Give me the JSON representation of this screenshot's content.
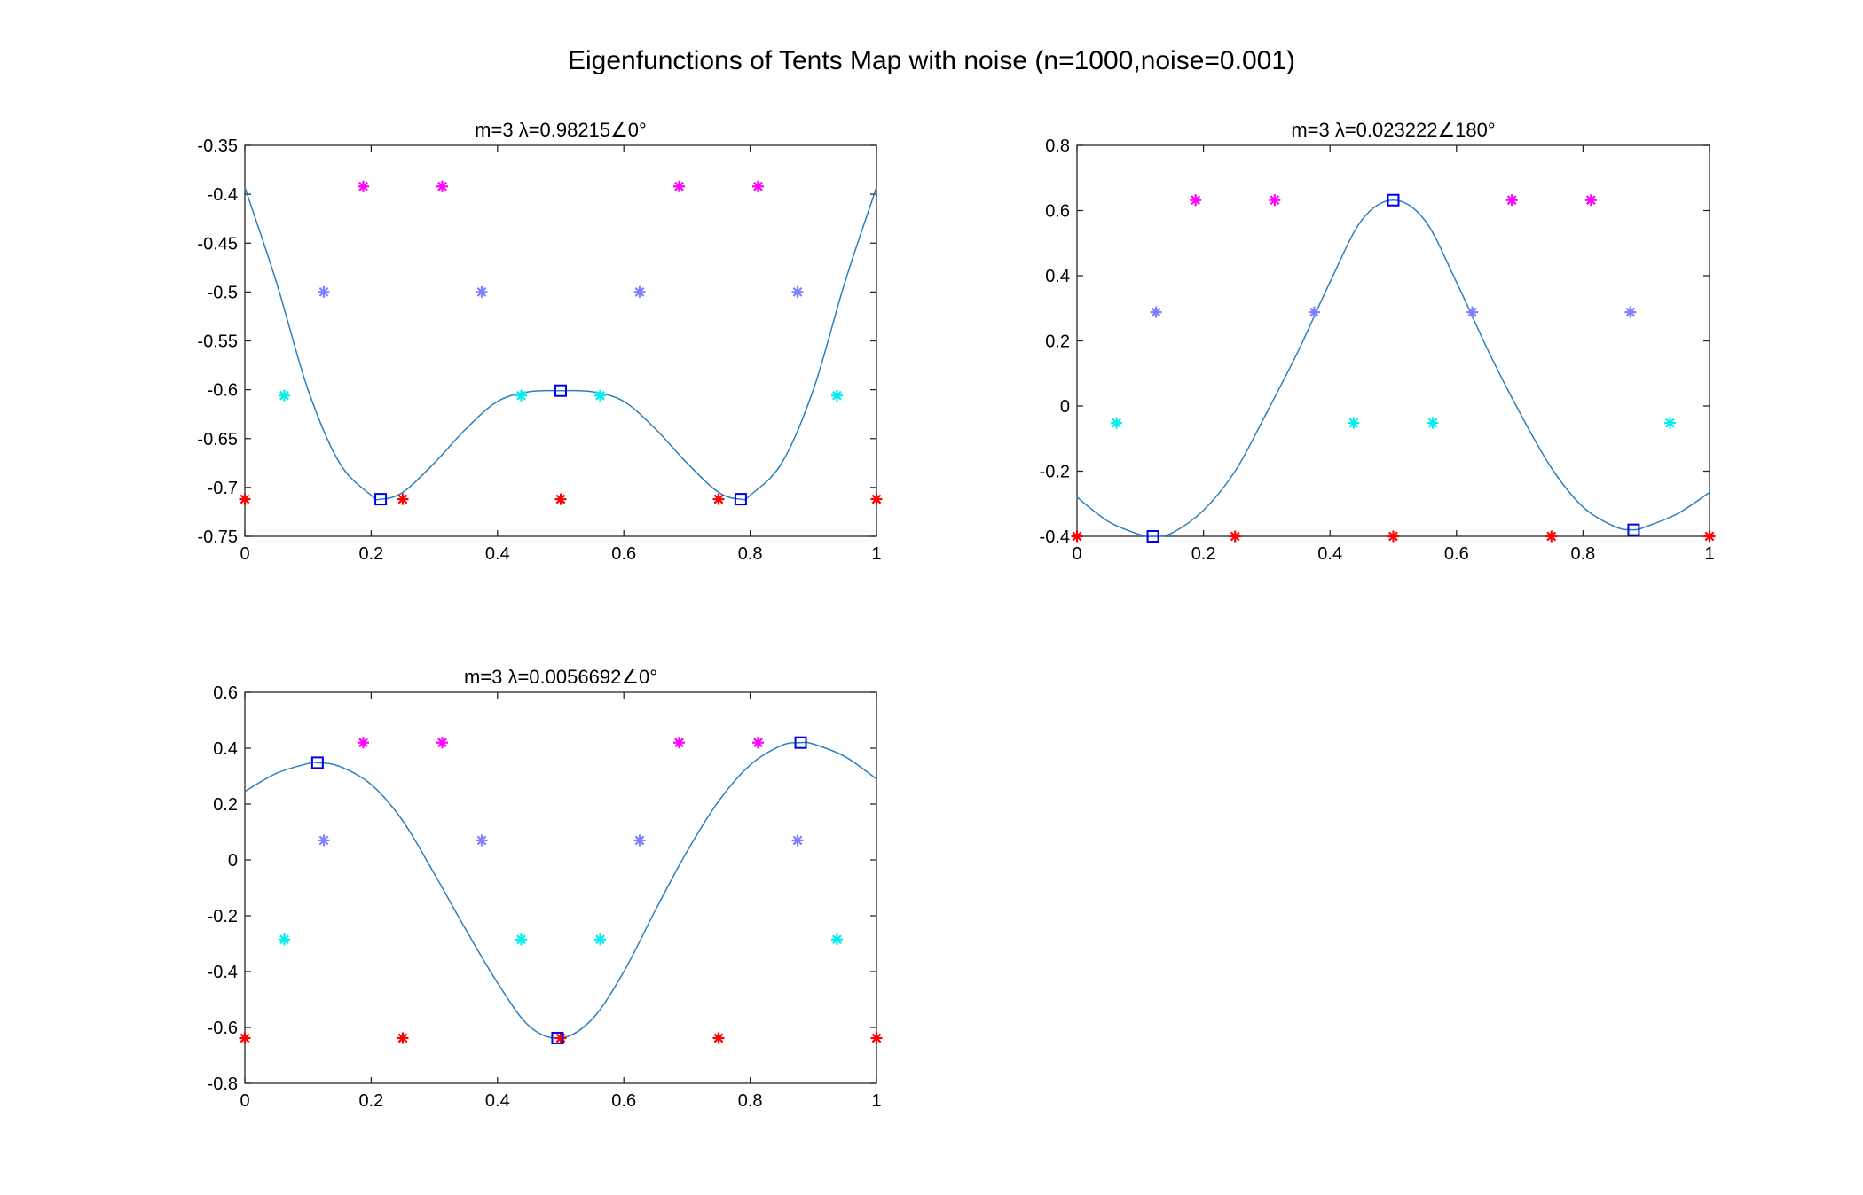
{
  "figure_title": "Eigenfunctions of Tents Map with noise (n=1000,noise=0.001)",
  "colors": {
    "curve": "#2d7fbd",
    "square": "#0000ee",
    "red": "#ff0000",
    "cyan": "#00eeee",
    "lightblue": "#7f7fff",
    "magenta": "#ff00ff"
  },
  "chart_data": [
    {
      "type": "line",
      "title": "m=3 λ=0.98215∠0°",
      "xlim": [
        0,
        1
      ],
      "ylim": [
        -0.75,
        -0.35
      ],
      "xticks": [
        "0",
        "0.2",
        "0.4",
        "0.6",
        "0.8",
        "1"
      ],
      "yticks": [
        "-0.35",
        "-0.4",
        "-0.45",
        "-0.5",
        "-0.55",
        "-0.6",
        "-0.65",
        "-0.7",
        "-0.75"
      ],
      "curve": {
        "x": [
          0,
          0.05,
          0.1,
          0.15,
          0.2,
          0.215,
          0.25,
          0.3,
          0.35,
          0.4,
          0.45,
          0.5,
          0.55,
          0.6,
          0.65,
          0.7,
          0.75,
          0.785,
          0.8,
          0.85,
          0.9,
          0.95,
          1
        ],
        "y": [
          -0.393,
          -0.49,
          -0.6,
          -0.675,
          -0.708,
          -0.712,
          -0.705,
          -0.675,
          -0.64,
          -0.612,
          -0.602,
          -0.601,
          -0.602,
          -0.612,
          -0.64,
          -0.675,
          -0.705,
          -0.712,
          -0.708,
          -0.675,
          -0.6,
          -0.49,
          -0.393
        ]
      },
      "squares": {
        "x": [
          0.215,
          0.5,
          0.785
        ],
        "y": [
          -0.712,
          -0.601,
          -0.712
        ]
      },
      "stars": [
        {
          "color": "red",
          "x": [
            0,
            0.25,
            0.5,
            0.75,
            1
          ],
          "y": [
            -0.712,
            -0.712,
            -0.712,
            -0.712,
            -0.712
          ]
        },
        {
          "color": "cyan",
          "x": [
            0.0625,
            0.4375,
            0.5625,
            0.9375
          ],
          "y": [
            -0.606,
            -0.606,
            -0.606,
            -0.606
          ]
        },
        {
          "color": "lightblue",
          "x": [
            0.125,
            0.375,
            0.625,
            0.875
          ],
          "y": [
            -0.5,
            -0.5,
            -0.5,
            -0.5
          ]
        },
        {
          "color": "magenta",
          "x": [
            0.1875,
            0.3125,
            0.6875,
            0.8125
          ],
          "y": [
            -0.392,
            -0.392,
            -0.392,
            -0.392
          ]
        }
      ]
    },
    {
      "type": "line",
      "title": "m=3 λ=0.023222∠180°",
      "xlim": [
        0,
        1
      ],
      "ylim": [
        -0.4,
        0.8
      ],
      "xticks": [
        "0",
        "0.2",
        "0.4",
        "0.6",
        "0.8",
        "1"
      ],
      "yticks": [
        "0.8",
        "0.6",
        "0.4",
        "0.2",
        "0",
        "-0.2",
        "-0.4"
      ],
      "curve": {
        "x": [
          0,
          0.05,
          0.1,
          0.12,
          0.15,
          0.2,
          0.25,
          0.3,
          0.35,
          0.4,
          0.45,
          0.5,
          0.55,
          0.6,
          0.65,
          0.7,
          0.75,
          0.8,
          0.85,
          0.88,
          0.9,
          0.95,
          1
        ],
        "y": [
          -0.28,
          -0.355,
          -0.395,
          -0.4,
          -0.39,
          -0.32,
          -0.2,
          -0.02,
          0.17,
          0.38,
          0.57,
          0.632,
          0.57,
          0.38,
          0.17,
          -0.02,
          -0.19,
          -0.31,
          -0.37,
          -0.38,
          -0.37,
          -0.33,
          -0.265
        ]
      },
      "squares": {
        "x": [
          0.12,
          0.5,
          0.88
        ],
        "y": [
          -0.4,
          0.632,
          -0.38
        ]
      },
      "stars": [
        {
          "color": "red",
          "x": [
            0,
            0.25,
            0.5,
            0.75,
            1
          ],
          "y": [
            -0.4,
            -0.4,
            -0.4,
            -0.4,
            -0.4
          ]
        },
        {
          "color": "cyan",
          "x": [
            0.0625,
            0.4375,
            0.5625,
            0.9375
          ],
          "y": [
            -0.052,
            -0.052,
            -0.052,
            -0.052
          ]
        },
        {
          "color": "lightblue",
          "x": [
            0.125,
            0.375,
            0.625,
            0.875
          ],
          "y": [
            0.288,
            0.288,
            0.288,
            0.288
          ]
        },
        {
          "color": "magenta",
          "x": [
            0.1875,
            0.3125,
            0.6875,
            0.8125
          ],
          "y": [
            0.632,
            0.632,
            0.632,
            0.632
          ]
        }
      ]
    },
    {
      "type": "line",
      "title": "m=3 λ=0.0056692∠0°",
      "xlim": [
        0,
        1
      ],
      "ylim": [
        -0.8,
        0.6
      ],
      "xticks": [
        "0",
        "0.2",
        "0.4",
        "0.6",
        "0.8",
        "1"
      ],
      "yticks": [
        "0.6",
        "0.4",
        "0.2",
        "0",
        "-0.2",
        "-0.4",
        "-0.6",
        "-0.8"
      ],
      "curve": {
        "x": [
          0,
          0.05,
          0.1,
          0.115,
          0.15,
          0.2,
          0.25,
          0.3,
          0.35,
          0.4,
          0.45,
          0.5,
          0.55,
          0.6,
          0.65,
          0.7,
          0.75,
          0.8,
          0.85,
          0.88,
          0.9,
          0.95,
          1
        ],
        "y": [
          0.245,
          0.31,
          0.345,
          0.348,
          0.335,
          0.27,
          0.14,
          -0.05,
          -0.25,
          -0.44,
          -0.595,
          -0.638,
          -0.57,
          -0.4,
          -0.18,
          0.03,
          0.21,
          0.34,
          0.41,
          0.42,
          0.415,
          0.37,
          0.29
        ]
      },
      "squares": {
        "x": [
          0.115,
          0.495,
          0.88
        ],
        "y": [
          0.348,
          -0.638,
          0.42
        ]
      },
      "stars": [
        {
          "color": "red",
          "x": [
            0,
            0.25,
            0.5,
            0.75,
            1
          ],
          "y": [
            -0.638,
            -0.638,
            -0.638,
            -0.638,
            -0.638
          ]
        },
        {
          "color": "cyan",
          "x": [
            0.0625,
            0.4375,
            0.5625,
            0.9375
          ],
          "y": [
            -0.285,
            -0.285,
            -0.285,
            -0.285
          ]
        },
        {
          "color": "lightblue",
          "x": [
            0.125,
            0.375,
            0.625,
            0.875
          ],
          "y": [
            0.07,
            0.07,
            0.07,
            0.07
          ]
        },
        {
          "color": "magenta",
          "x": [
            0.1875,
            0.3125,
            0.6875,
            0.8125
          ],
          "y": [
            0.42,
            0.42,
            0.42,
            0.42
          ]
        }
      ]
    }
  ]
}
